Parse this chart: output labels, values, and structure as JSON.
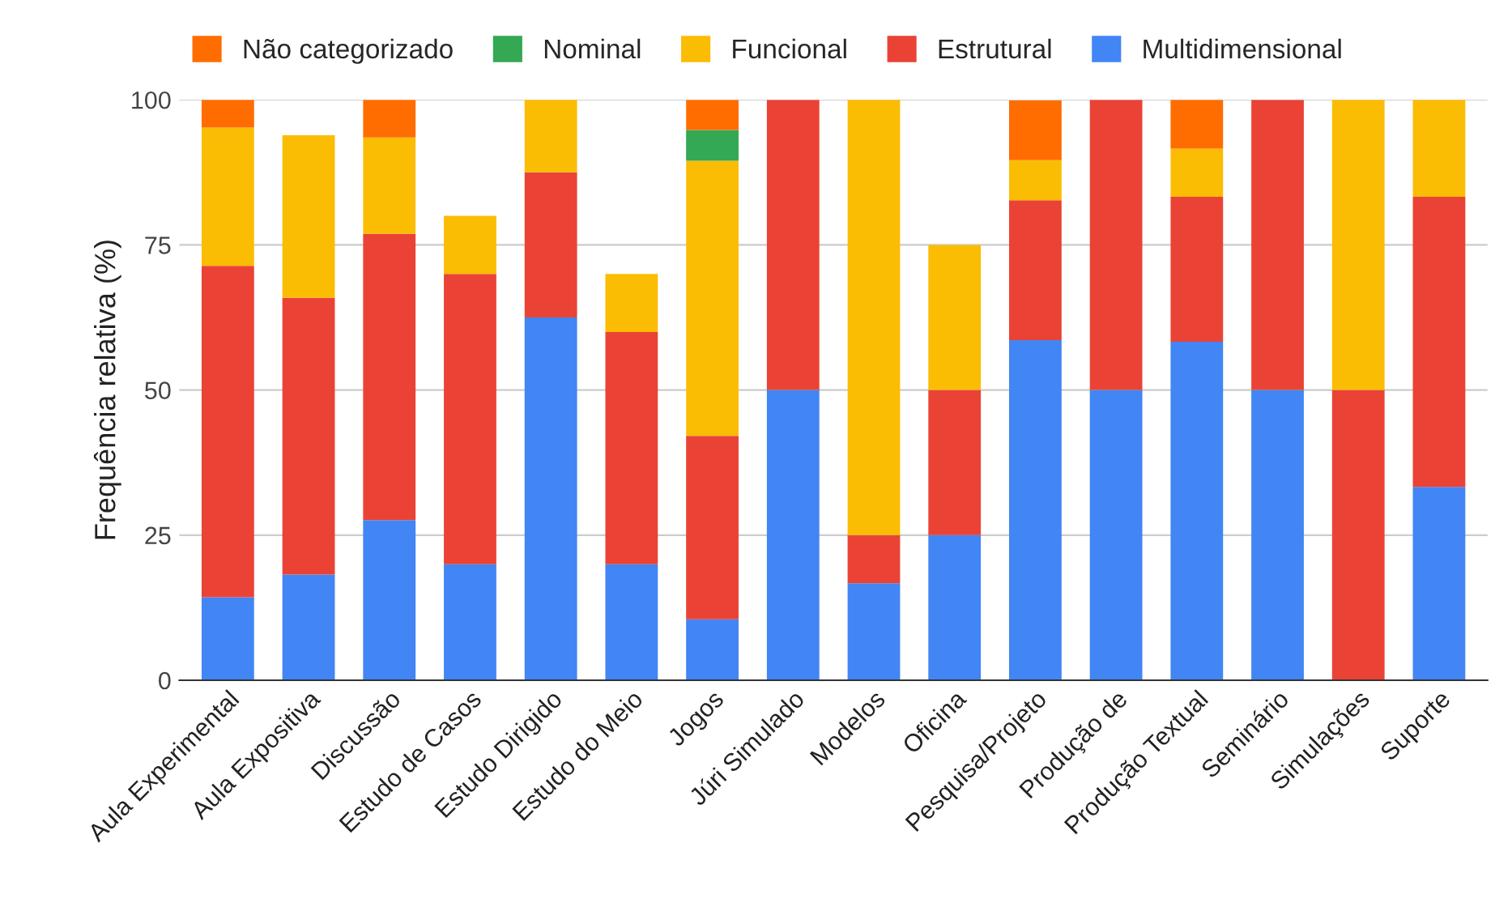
{
  "chart_data": {
    "type": "bar",
    "stacked": true,
    "ylabel": "Frequência relativa (%)",
    "categories": [
      "Aula Experimental",
      "Aula Expositiva",
      "Discussão",
      "Estudo de Casos",
      "Estudo Dirigido",
      "Estudo do Meio",
      "Jogos",
      "Júri Simulado",
      "Modelos",
      "Oficina",
      "Pesquisa/Projeto",
      "Produção de",
      "Produção Textual",
      "Seminário",
      "Simulações",
      "Suporte"
    ],
    "series": [
      {
        "name": "Multidimensional",
        "color": "#4285f4",
        "values": [
          14.3,
          18.2,
          27.6,
          20,
          62.5,
          20,
          10.5,
          50,
          16.7,
          25,
          58.6,
          50,
          58.3,
          50,
          0,
          33.3
        ]
      },
      {
        "name": "Estrutural",
        "color": "#ea4335",
        "values": [
          57.1,
          47.7,
          49.3,
          50,
          25,
          40,
          31.6,
          50,
          8.3,
          25,
          24.1,
          50,
          25,
          50,
          50,
          50
        ]
      },
      {
        "name": "Funcional",
        "color": "#fbbc04",
        "values": [
          23.8,
          28,
          16.6,
          10,
          12.5,
          10,
          47.4,
          0,
          75,
          25,
          6.9,
          0,
          8.3,
          0,
          50,
          16.7
        ]
      },
      {
        "name": "Nominal",
        "color": "#34a853",
        "values": [
          0,
          0,
          0,
          0,
          0,
          0,
          5.3,
          0,
          0,
          0,
          0,
          0,
          0,
          0,
          0,
          0
        ]
      },
      {
        "name": "Não categorizado",
        "color": "#ff6d01",
        "values": [
          4.8,
          0,
          6.5,
          0,
          0,
          0,
          5.2,
          0,
          0,
          0,
          10.3,
          0,
          8.4,
          0,
          0,
          0
        ]
      }
    ],
    "ylim": [
      0,
      100
    ],
    "yticks": [
      0,
      25,
      50,
      75,
      100
    ],
    "grid": "y",
    "legend": "top"
  }
}
